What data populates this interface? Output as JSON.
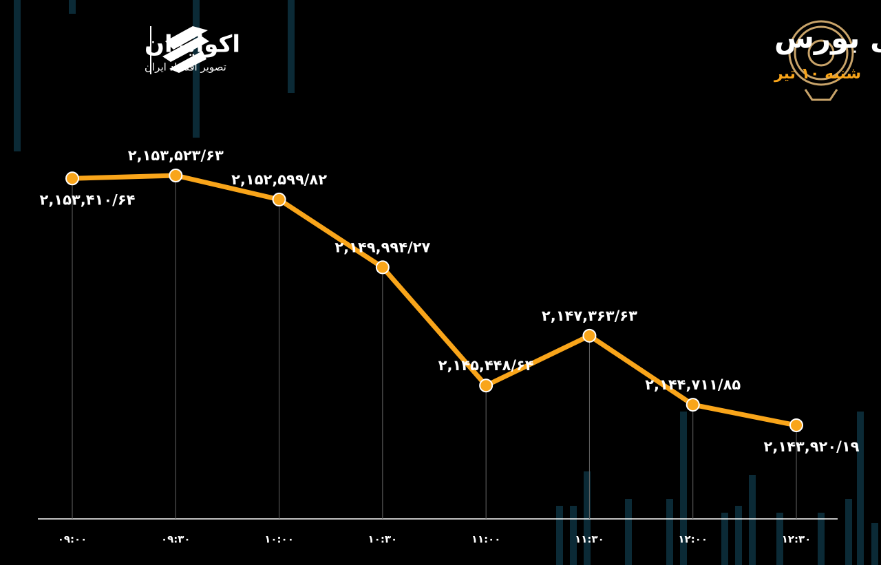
{
  "brand": {
    "name": "اکوایران",
    "tagline": "تصویر اقتصاد ایران"
  },
  "chart_data": {
    "type": "line",
    "title": "روند شاخص کل بورس",
    "subtitle": "شنبه ۱۰ تیر",
    "categories": [
      "۰۹:۰۰",
      "۰۹:۳۰",
      "۱۰:۰۰",
      "۱۰:۳۰",
      "۱۱:۰۰",
      "۱۱:۳۰",
      "۱۲:۰۰",
      "۱۲:۳۰"
    ],
    "series": [
      {
        "color": "#f9a51a",
        "values": [
          2153410.64,
          2153523.63,
          2152599.82,
          2149994.27,
          2145448.64,
          2147363.63,
          2144711.85,
          2143920.19
        ],
        "value_labels": [
          "۲,۱۵۳,۴۱۰/۶۴",
          "۲,۱۵۳,۵۲۳/۶۳",
          "۲,۱۵۲,۵۹۹/۸۲",
          "۲,۱۴۹,۹۹۴/۲۷",
          "۲,۱۴۵,۴۴۸/۶۴",
          "۲,۱۴۷,۳۶۳/۶۳",
          "۲,۱۴۴,۷۱۱/۸۵",
          "۲,۱۴۳,۹۲۰/۱۹"
        ]
      }
    ]
  }
}
